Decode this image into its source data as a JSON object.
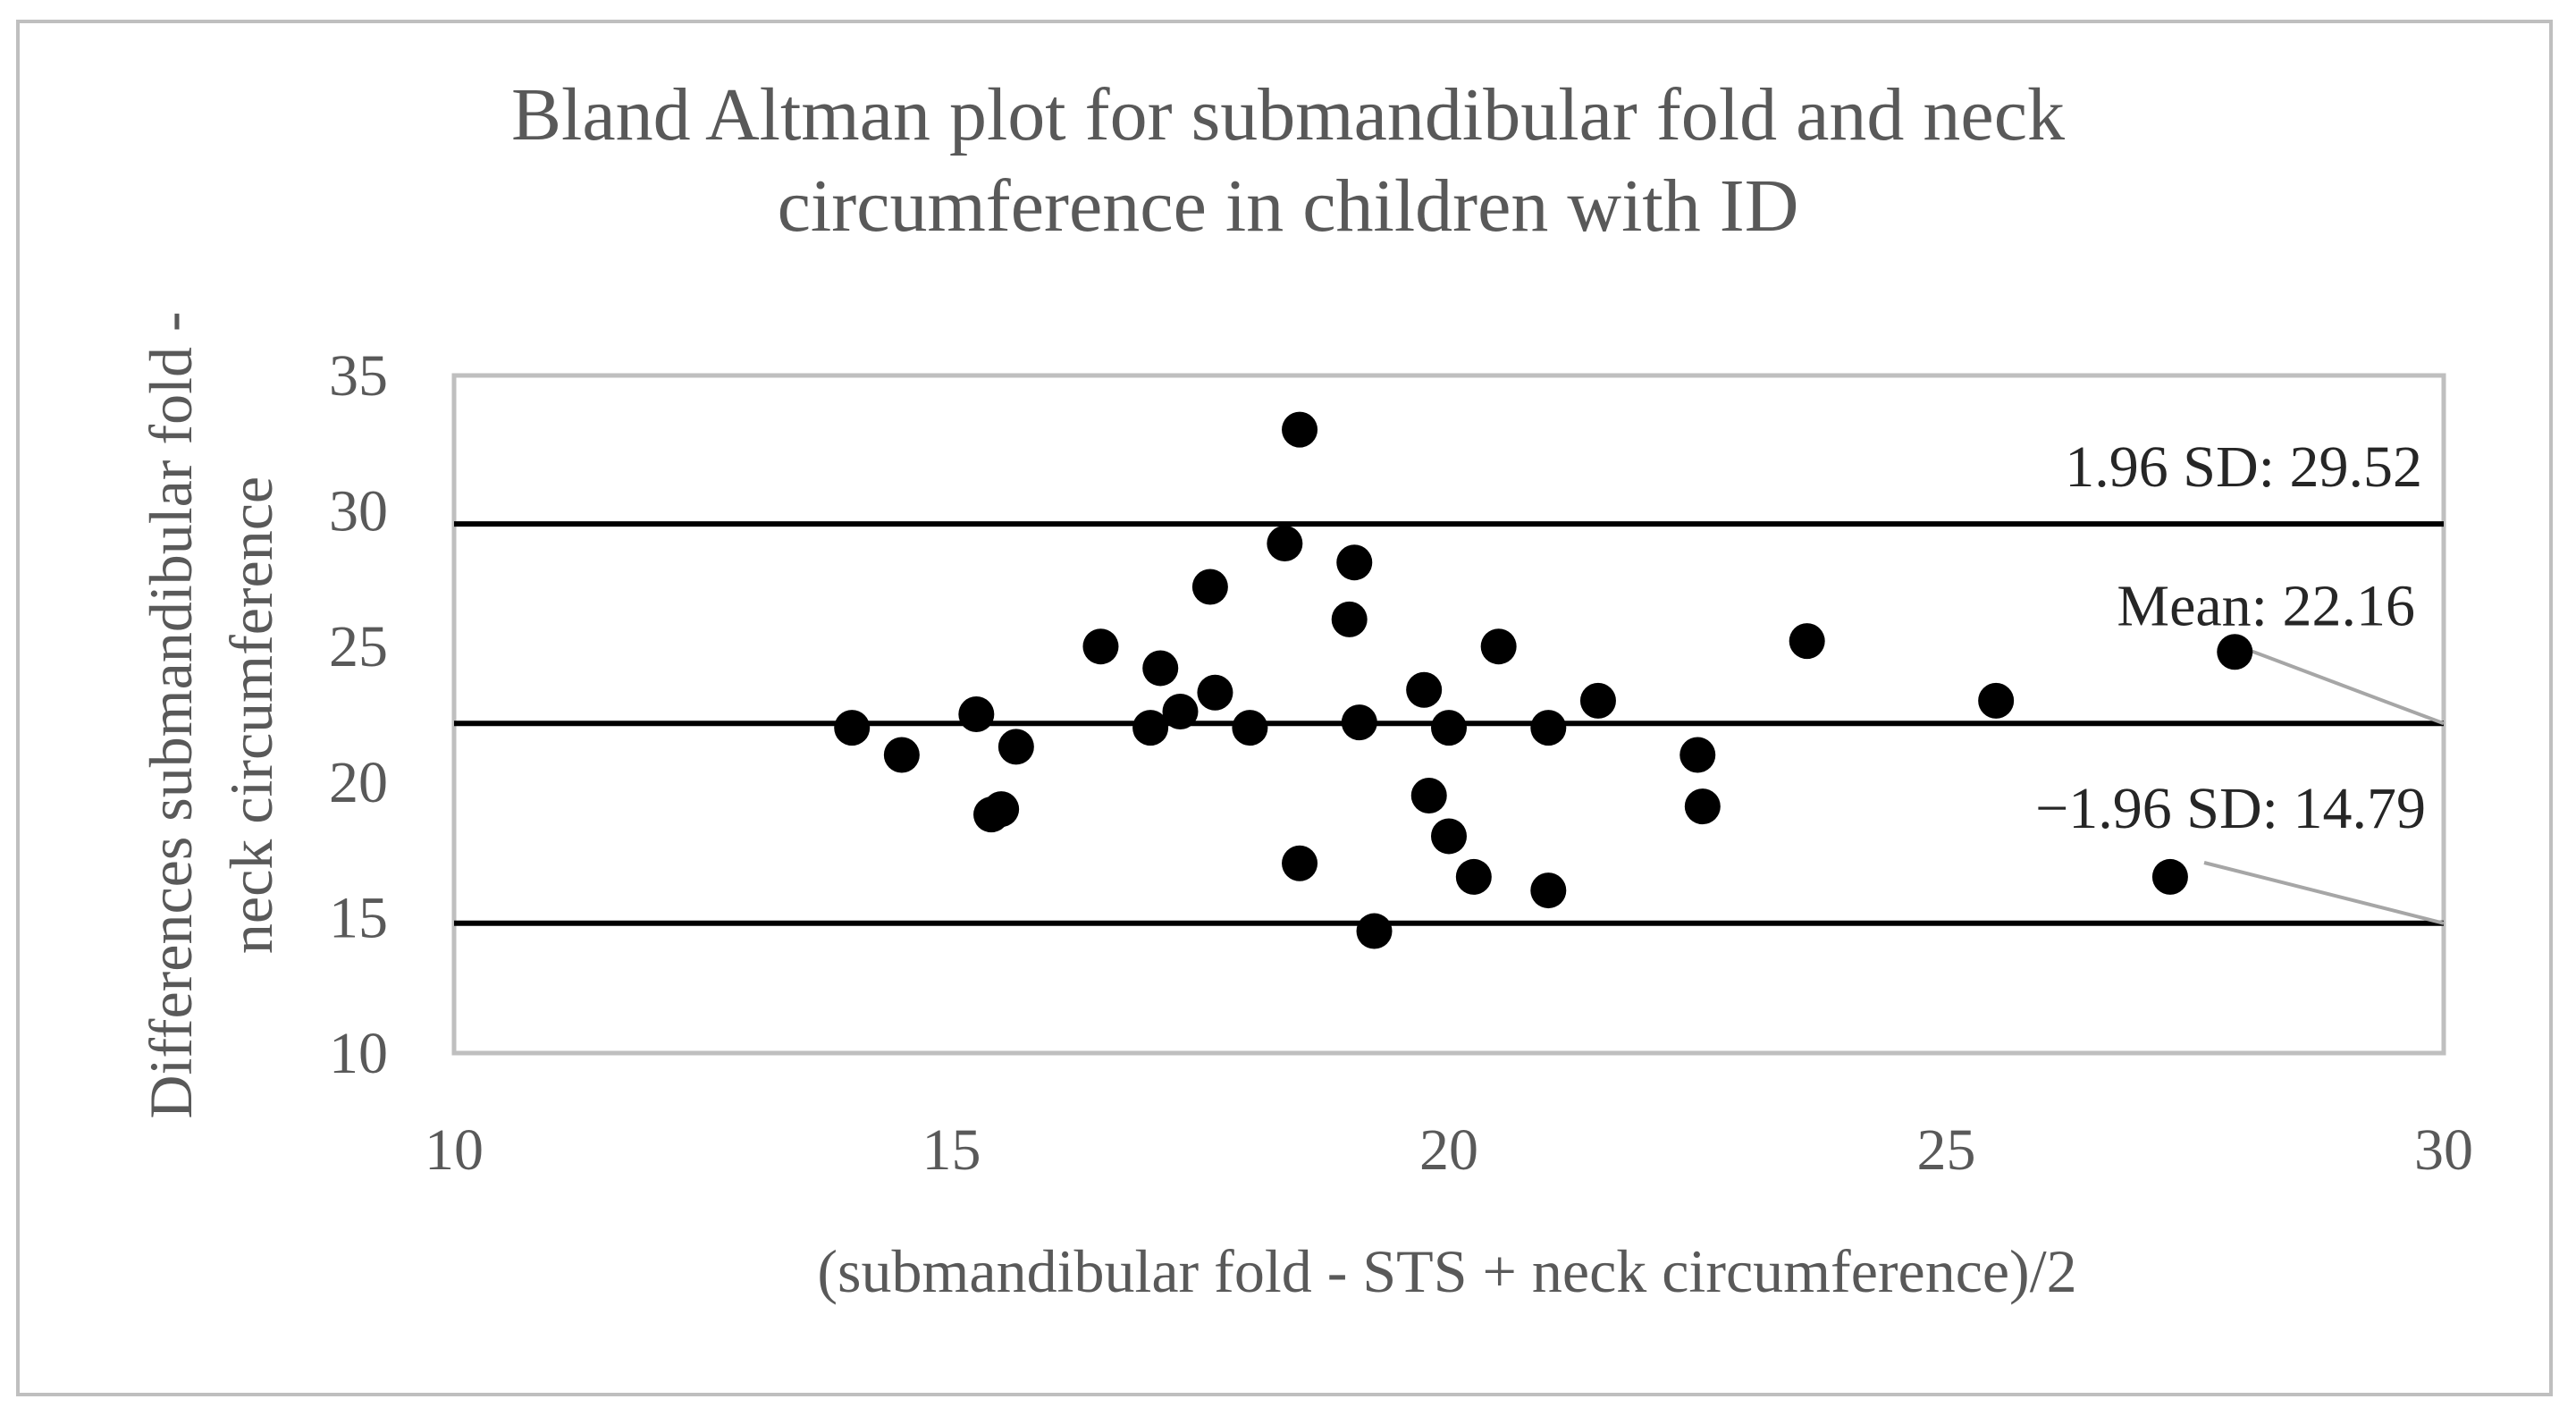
{
  "chart_data": {
    "type": "scatter",
    "title": "Bland Altman plot for submandibular fold and neck\ncircumference in children with ID",
    "xlabel": "(submandibular fold - STS + neck circumference)/2",
    "ylabel": "Differences  submandibular fold -\nneck circumference",
    "xlim": [
      10,
      30
    ],
    "ylim": [
      10,
      35
    ],
    "xticks": [
      10,
      15,
      20,
      25,
      30
    ],
    "yticks": [
      10,
      15,
      20,
      25,
      30,
      35
    ],
    "grid": false,
    "points": [
      {
        "x": 14.0,
        "y": 22.0
      },
      {
        "x": 14.5,
        "y": 21.0
      },
      {
        "x": 15.25,
        "y": 22.5
      },
      {
        "x": 15.4,
        "y": 18.8
      },
      {
        "x": 15.5,
        "y": 19.0
      },
      {
        "x": 15.65,
        "y": 21.3
      },
      {
        "x": 16.5,
        "y": 25.0
      },
      {
        "x": 17.0,
        "y": 22.0
      },
      {
        "x": 17.1,
        "y": 24.2
      },
      {
        "x": 17.3,
        "y": 22.6
      },
      {
        "x": 17.6,
        "y": 27.2
      },
      {
        "x": 17.65,
        "y": 23.3
      },
      {
        "x": 18.0,
        "y": 22.0
      },
      {
        "x": 18.35,
        "y": 28.8
      },
      {
        "x": 18.5,
        "y": 33.0
      },
      {
        "x": 18.5,
        "y": 17.0
      },
      {
        "x": 19.0,
        "y": 26.0
      },
      {
        "x": 19.05,
        "y": 28.1
      },
      {
        "x": 19.1,
        "y": 22.2
      },
      {
        "x": 19.25,
        "y": 14.5
      },
      {
        "x": 19.75,
        "y": 23.4
      },
      {
        "x": 19.8,
        "y": 19.5
      },
      {
        "x": 20.0,
        "y": 22.0
      },
      {
        "x": 20.0,
        "y": 18.0
      },
      {
        "x": 20.25,
        "y": 16.5
      },
      {
        "x": 20.5,
        "y": 25.0
      },
      {
        "x": 21.0,
        "y": 22.0
      },
      {
        "x": 21.0,
        "y": 16.0
      },
      {
        "x": 21.5,
        "y": 23.0
      },
      {
        "x": 22.5,
        "y": 21.0
      },
      {
        "x": 22.55,
        "y": 19.1
      },
      {
        "x": 23.6,
        "y": 25.2
      },
      {
        "x": 25.5,
        "y": 23.0
      },
      {
        "x": 27.25,
        "y": 16.5
      },
      {
        "x": 27.9,
        "y": 24.8
      }
    ],
    "reference_lines": [
      {
        "y": 29.52,
        "label": "1.96 SD: 29.52"
      },
      {
        "y": 22.16,
        "label": "Mean: 22.16"
      },
      {
        "y": 14.79,
        "label": "−1.96 SD: 14.79"
      }
    ],
    "colors": {
      "points": "#000000",
      "lines": "#000000",
      "plot_border": "#bfbfbf",
      "frame_border": "#bfbfbf",
      "leader": "#a6a6a6",
      "text": "#595959"
    }
  }
}
